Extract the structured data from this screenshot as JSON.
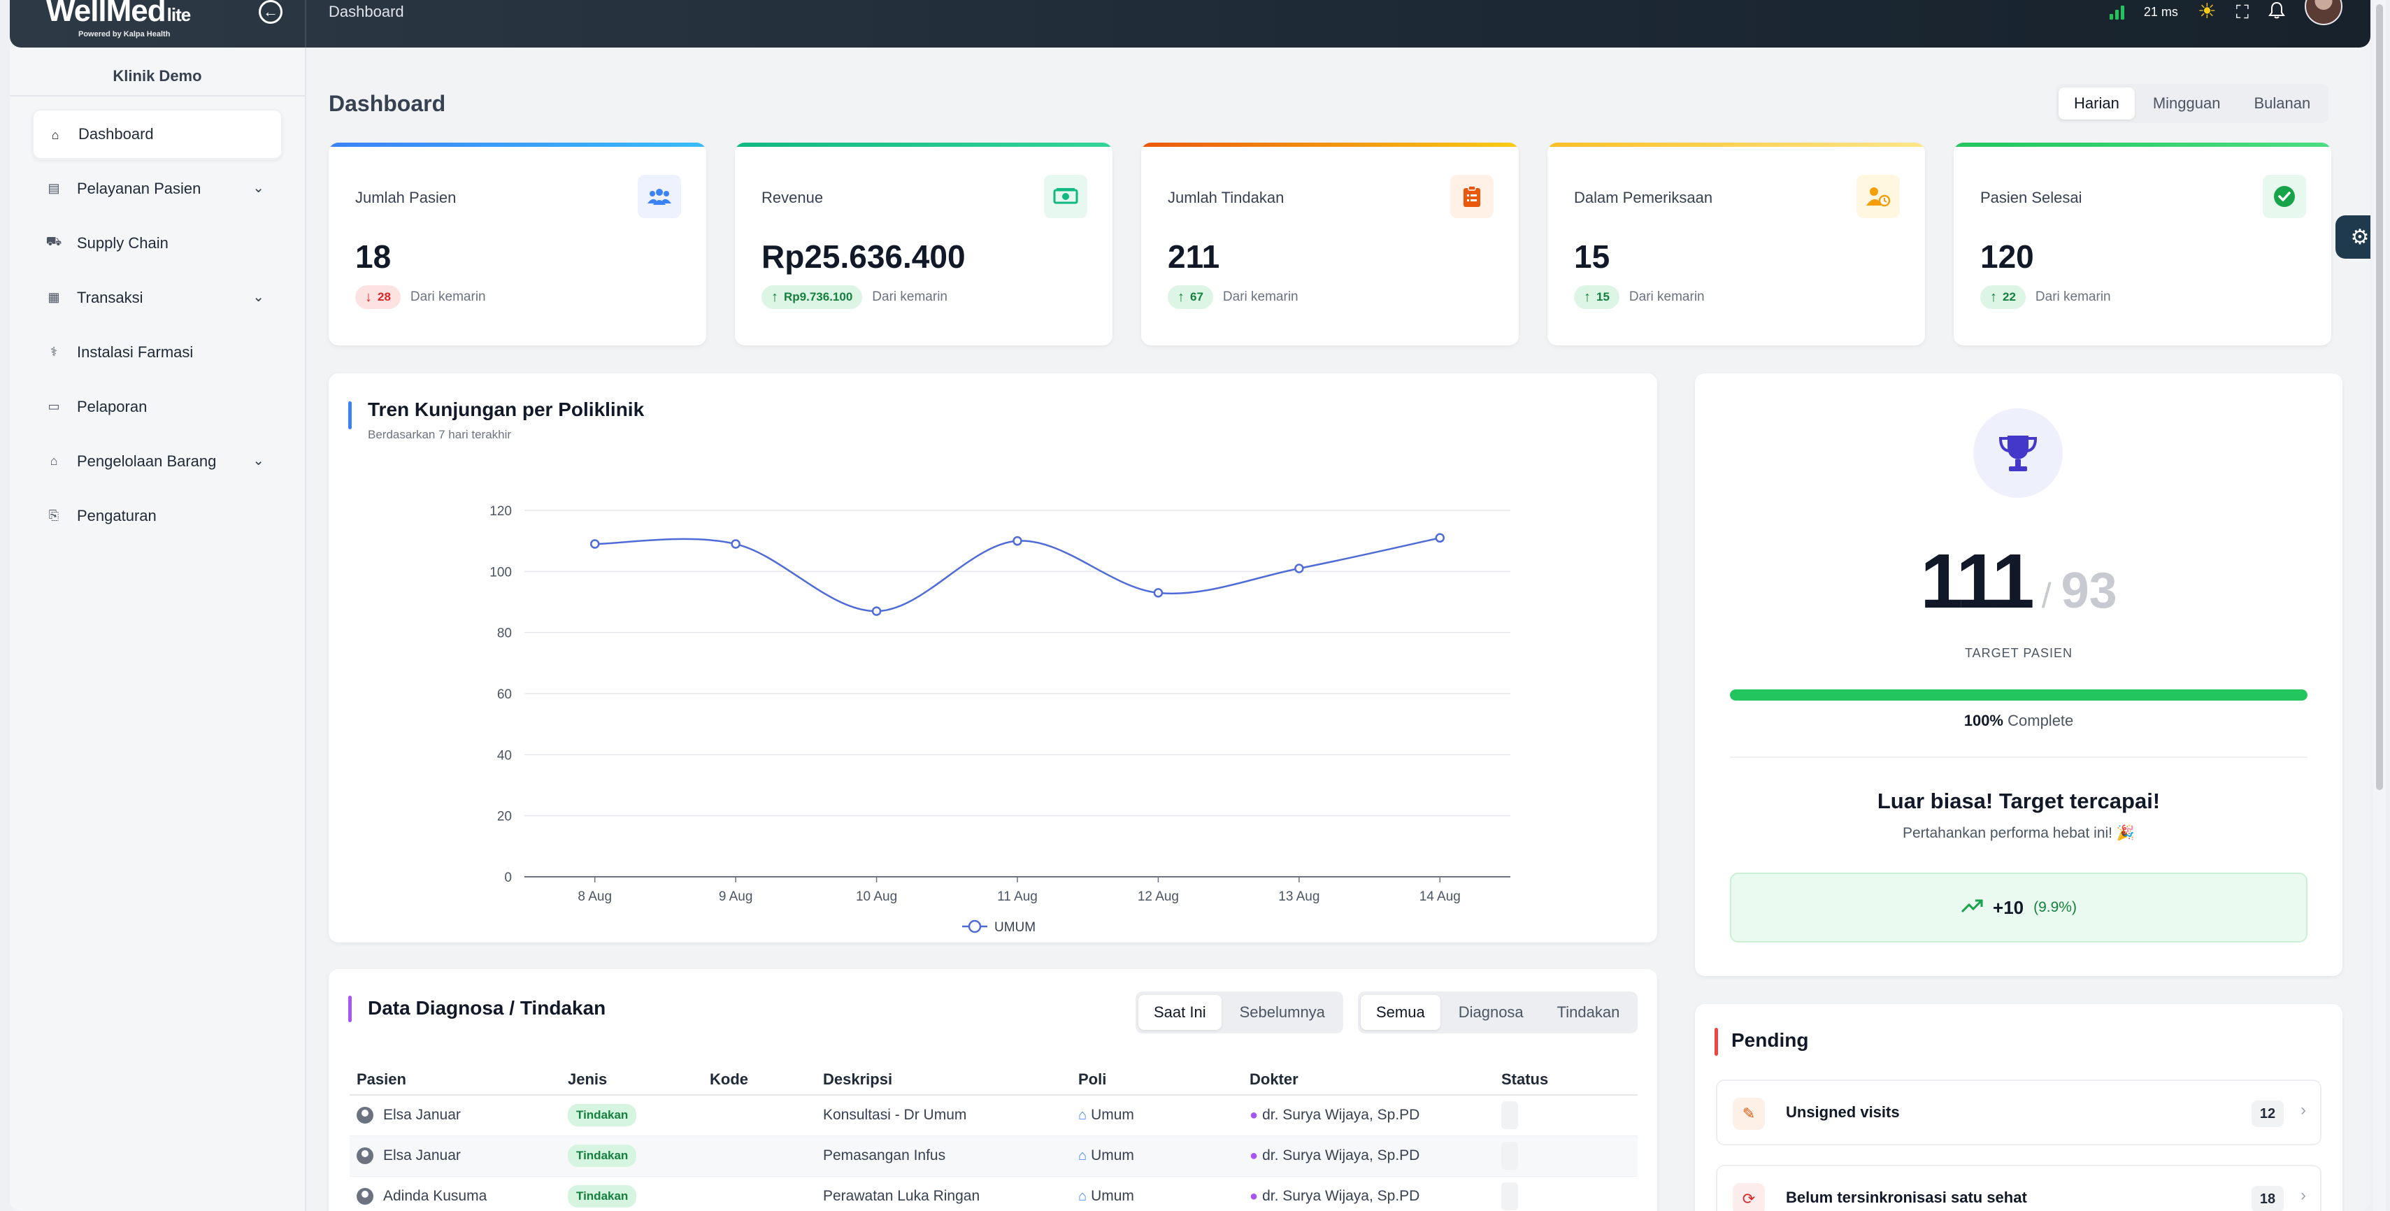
{
  "app": {
    "brand": "WellMed",
    "brand_suffix": "lite",
    "brand_sub": "Powered by Kalpa Health",
    "page": "Dashboard",
    "ping": "21 ms"
  },
  "sidebar": {
    "clinic": "Klinik Demo",
    "items": [
      {
        "label": "Dashboard",
        "icon": "home-icon",
        "active": true
      },
      {
        "label": "Pelayanan Pasien",
        "icon": "clipboard-icon",
        "expandable": true
      },
      {
        "label": "Supply Chain",
        "icon": "truck-icon"
      },
      {
        "label": "Transaksi",
        "icon": "receipt-icon",
        "expandable": true
      },
      {
        "label": "Instalasi Farmasi",
        "icon": "pharmacy-icon"
      },
      {
        "label": "Pelaporan",
        "icon": "report-icon"
      },
      {
        "label": "Pengelolaan Barang",
        "icon": "warehouse-icon",
        "expandable": true
      },
      {
        "label": "Pengaturan",
        "icon": "settings-door-icon"
      }
    ]
  },
  "main": {
    "title": "Dashboard",
    "period_tabs": [
      "Harian",
      "Mingguan",
      "Bulanan"
    ],
    "period_active": "Harian",
    "stats": [
      {
        "label": "Jumlah Pasien",
        "value": "18",
        "change": "28",
        "direction": "down",
        "note": "Dari kemarin",
        "color": "#3b82f6",
        "icon": "users-icon"
      },
      {
        "label": "Revenue",
        "value": "Rp25.636.400",
        "change": "Rp9.736.100",
        "direction": "up",
        "note": "Dari kemarin",
        "color": "#10b981",
        "icon": "money-icon"
      },
      {
        "label": "Jumlah Tindakan",
        "value": "211",
        "change": "67",
        "direction": "up",
        "note": "Dari kemarin",
        "color": "#f59e0b",
        "icon": "clipboard-list-icon"
      },
      {
        "label": "Dalam Pemeriksaan",
        "value": "15",
        "change": "15",
        "direction": "up",
        "note": "Dari kemarin",
        "color": "#fbbf24",
        "icon": "user-clock-icon"
      },
      {
        "label": "Pasien Selesai",
        "value": "120",
        "change": "22",
        "direction": "up",
        "note": "Dari kemarin",
        "color": "#22c55e",
        "icon": "check-circle-icon"
      }
    ]
  },
  "chart_card": {
    "title": "Tren Kunjungan per Poliklinik",
    "subtitle": "Berdasarkan 7 hari terakhir"
  },
  "chart_data": {
    "type": "line",
    "categories": [
      "8 Aug",
      "9 Aug",
      "10 Aug",
      "11 Aug",
      "12 Aug",
      "13 Aug",
      "14 Aug"
    ],
    "series": [
      {
        "name": "UMUM",
        "values": [
          109,
          109,
          87,
          110,
          93,
          101,
          111
        ],
        "color": "#4f6bd8"
      }
    ],
    "y_ticks": [
      0,
      20,
      40,
      60,
      80,
      100,
      120
    ],
    "ylim": [
      0,
      120
    ],
    "grid": true,
    "legend": "bottom-center"
  },
  "target": {
    "current": "111",
    "target": "93",
    "label": "TARGET PASIEN",
    "progress_percent": 100,
    "percent_text": "100%",
    "complete_text": "Complete",
    "headline": "Luar biasa! Target tercapai!",
    "subline": "Pertahankan performa hebat ini! 🎉",
    "delta": "+10",
    "delta_pct": "(9.9%)"
  },
  "diagnosa": {
    "title": "Data Diagnosa / Tindakan",
    "time_tabs": [
      "Saat Ini",
      "Sebelumnya"
    ],
    "time_active": "Saat Ini",
    "type_tabs": [
      "Semua",
      "Diagnosa",
      "Tindakan"
    ],
    "type_active": "Semua",
    "columns": [
      "Pasien",
      "Jenis",
      "Kode",
      "Deskripsi",
      "Poli",
      "Dokter",
      "Status"
    ],
    "rows": [
      {
        "pasien": "Elsa Januar",
        "jenis": "Tindakan",
        "kode": "",
        "deskripsi": "Konsultasi - Dr Umum",
        "poli": "Umum",
        "dokter": "dr. Surya Wijaya, Sp.PD"
      },
      {
        "pasien": "Elsa Januar",
        "jenis": "Tindakan",
        "kode": "",
        "deskripsi": "Pemasangan Infus",
        "poli": "Umum",
        "dokter": "dr. Surya Wijaya, Sp.PD"
      },
      {
        "pasien": "Adinda Kusuma",
        "jenis": "Tindakan",
        "kode": "",
        "deskripsi": "Perawatan Luka Ringan",
        "poli": "Umum",
        "dokter": "dr. Surya Wijaya, Sp.PD"
      }
    ]
  },
  "pending": {
    "title": "Pending",
    "items": [
      {
        "label": "Unsigned visits",
        "count": "12",
        "icon": "file-signature-icon"
      },
      {
        "label": "Belum tersinkronisasi satu sehat",
        "count": "18",
        "icon": "sync-icon"
      }
    ]
  }
}
